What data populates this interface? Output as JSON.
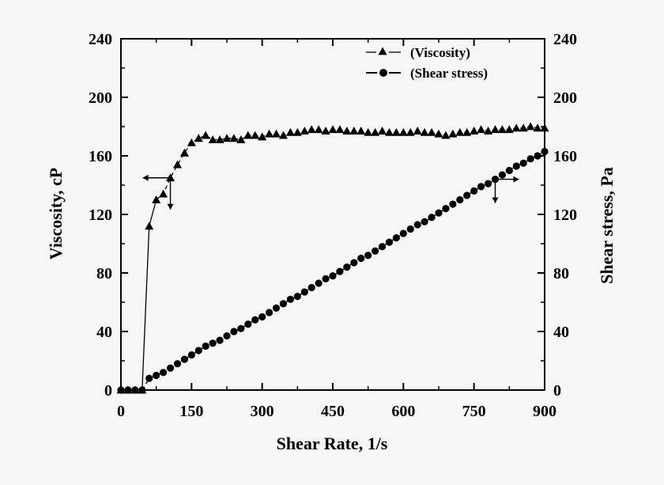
{
  "chart_data": {
    "type": "line",
    "xlabel": "Shear Rate, 1/s",
    "ylabel": "Viscosity, cP",
    "y2label": "Shear stress, Pa",
    "xlim": [
      0,
      900
    ],
    "ylim": [
      0,
      240
    ],
    "y2lim": [
      0,
      240
    ],
    "xticks": [
      "0",
      "150",
      "300",
      "450",
      "600",
      "750",
      "900"
    ],
    "yticks": [
      "0",
      "40",
      "80",
      "120",
      "160",
      "200",
      "240"
    ],
    "y2ticks": [
      "0",
      "40",
      "80",
      "120",
      "160",
      "200",
      "240"
    ],
    "grid": false,
    "legend_position": "top-right",
    "series": [
      {
        "name": "(Viscosity)",
        "axis": "left",
        "marker": "triangle",
        "line": "solid-dashed",
        "x": [
          0,
          15,
          30,
          45,
          60,
          75,
          90,
          105,
          120,
          135,
          150,
          165,
          180,
          195,
          210,
          225,
          240,
          255,
          270,
          285,
          300,
          315,
          330,
          345,
          360,
          375,
          390,
          405,
          420,
          435,
          450,
          465,
          480,
          495,
          510,
          525,
          540,
          555,
          570,
          585,
          600,
          615,
          630,
          645,
          660,
          675,
          690,
          705,
          720,
          735,
          750,
          765,
          780,
          795,
          810,
          825,
          840,
          855,
          870,
          885,
          900
        ],
        "values": [
          0,
          0,
          0,
          0,
          112,
          130,
          134,
          145,
          154,
          162,
          169,
          172,
          174,
          171,
          171,
          172,
          172,
          171,
          174,
          174,
          173,
          175,
          175,
          174,
          176,
          176,
          177,
          178,
          178,
          177,
          178,
          178,
          177,
          177,
          177,
          176,
          176,
          177,
          176,
          176,
          176,
          176,
          177,
          176,
          176,
          175,
          174,
          175,
          176,
          176,
          177,
          178,
          177,
          178,
          178,
          178,
          179,
          179,
          180,
          179,
          179
        ]
      },
      {
        "name": "(Shear stress)",
        "axis": "right",
        "marker": "circle",
        "line": "dashed",
        "x": [
          0,
          15,
          30,
          45,
          60,
          75,
          90,
          105,
          120,
          135,
          150,
          165,
          180,
          195,
          210,
          225,
          240,
          255,
          270,
          285,
          300,
          315,
          330,
          345,
          360,
          375,
          390,
          405,
          420,
          435,
          450,
          465,
          480,
          495,
          510,
          525,
          540,
          555,
          570,
          585,
          600,
          615,
          630,
          645,
          660,
          675,
          690,
          705,
          720,
          735,
          750,
          765,
          780,
          795,
          810,
          825,
          840,
          855,
          870,
          885,
          900
        ],
        "values": [
          0,
          0,
          0,
          0,
          8,
          10,
          12,
          15,
          18,
          21,
          24,
          27,
          30,
          32,
          34,
          37,
          40,
          42,
          45,
          48,
          50,
          53,
          56,
          59,
          62,
          64,
          67,
          70,
          73,
          76,
          78,
          81,
          84,
          87,
          90,
          92,
          95,
          98,
          101,
          104,
          107,
          110,
          113,
          115,
          118,
          121,
          124,
          127,
          130,
          133,
          136,
          139,
          141,
          144,
          147,
          150,
          153,
          155,
          158,
          160,
          163
        ]
      }
    ]
  }
}
